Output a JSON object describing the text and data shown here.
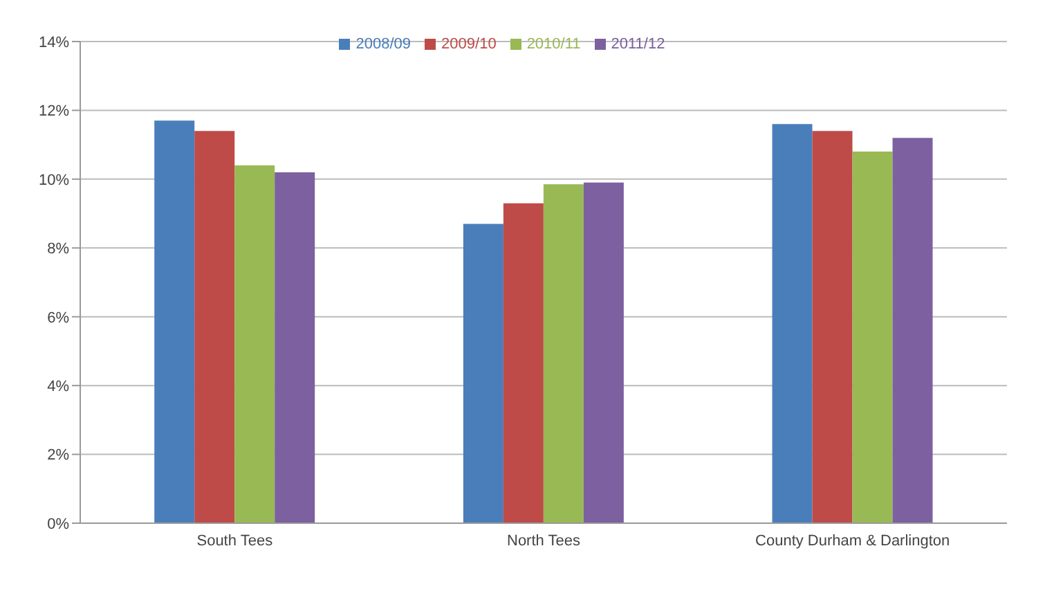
{
  "chart_data": {
    "type": "bar",
    "categories": [
      "South Tees",
      "North Tees",
      "County Durham & Darlington"
    ],
    "series": [
      {
        "name": "2008/09",
        "color": "#4a7ebb",
        "values": [
          11.7,
          8.7,
          11.6
        ]
      },
      {
        "name": "2009/10",
        "color": "#be4b48",
        "values": [
          11.4,
          9.3,
          11.4
        ]
      },
      {
        "name": "2010/11",
        "color": "#98b954",
        "values": [
          10.4,
          9.85,
          10.8
        ]
      },
      {
        "name": "2011/12",
        "color": "#7d60a0",
        "values": [
          10.2,
          9.9,
          11.2
        ]
      }
    ],
    "ylim": [
      0,
      14
    ],
    "yticks": [
      {
        "value": 0,
        "label": "0%"
      },
      {
        "value": 2,
        "label": "2%"
      },
      {
        "value": 4,
        "label": "4%"
      },
      {
        "value": 6,
        "label": "6%"
      },
      {
        "value": 8,
        "label": "8%"
      },
      {
        "value": 10,
        "label": "10%"
      },
      {
        "value": 12,
        "label": "12%"
      },
      {
        "value": 14,
        "label": "14%"
      }
    ],
    "grid": "y",
    "legend": "top"
  }
}
